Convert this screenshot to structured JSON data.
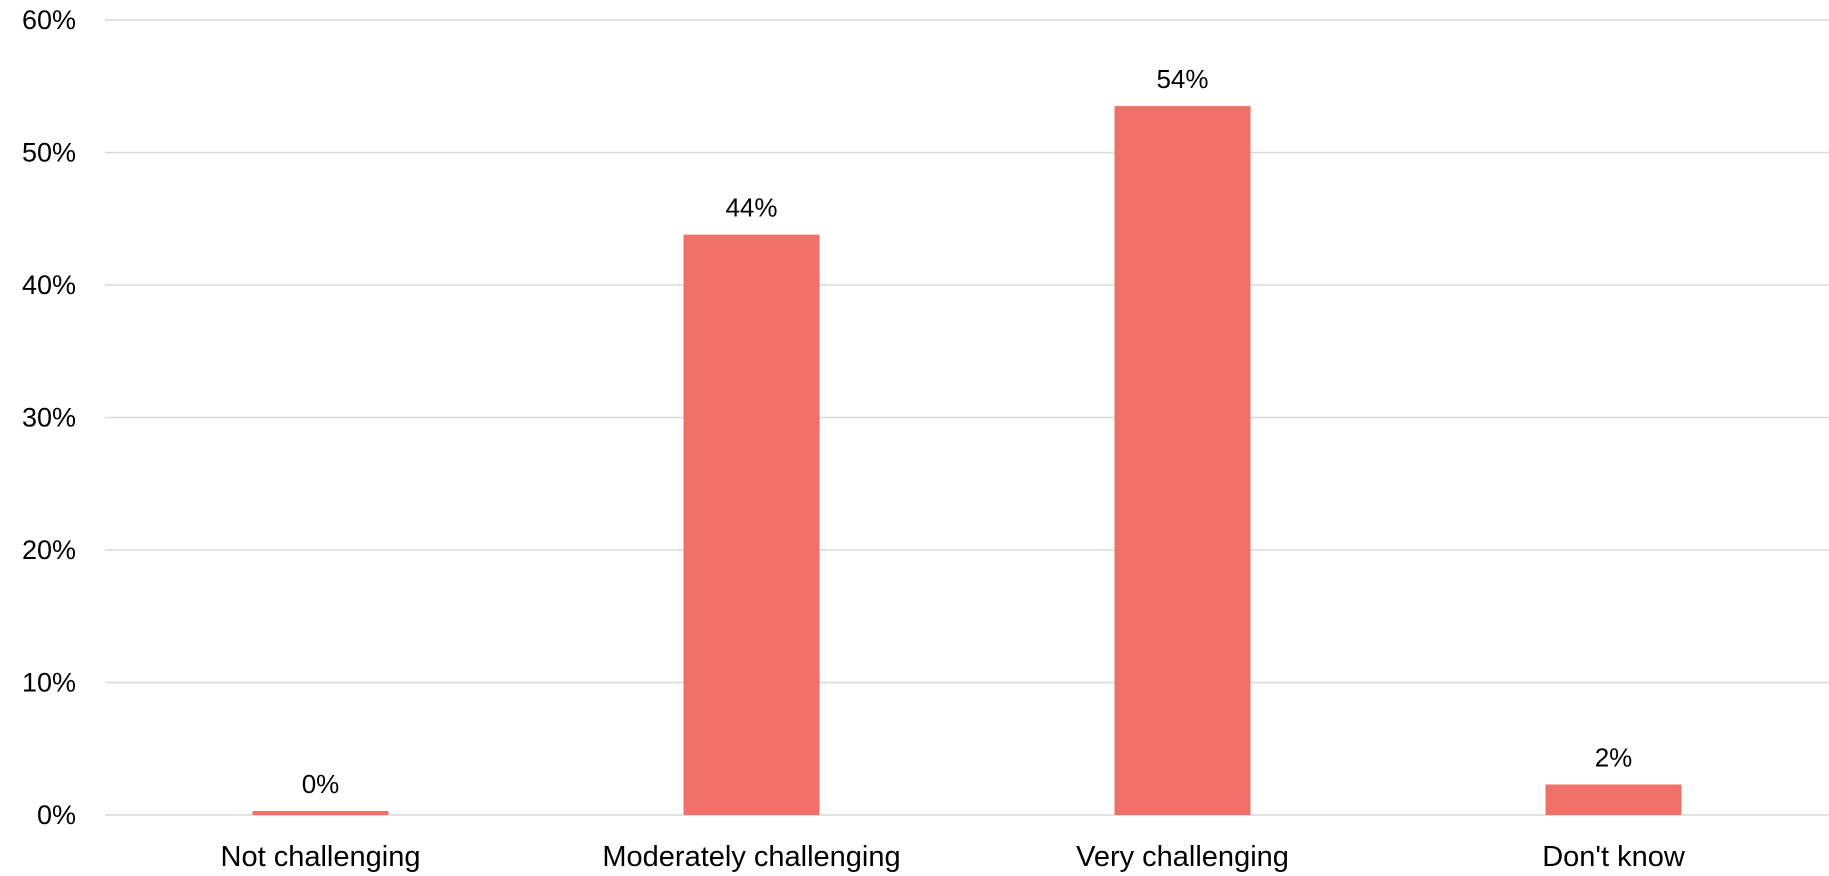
{
  "chart_data": {
    "type": "bar",
    "title": "",
    "xlabel": "",
    "ylabel": "",
    "categories": [
      "Not challenging",
      "Moderately challenging",
      "Very challenging",
      "Don't know"
    ],
    "values": [
      0.3,
      43.8,
      53.5,
      2.3
    ],
    "data_labels": [
      "0%",
      "44%",
      "54%",
      "2%"
    ],
    "ylim": [
      0,
      60
    ],
    "yticks": [
      0,
      10,
      20,
      30,
      40,
      50,
      60
    ],
    "ytick_labels": [
      "0%",
      "10%",
      "20%",
      "30%",
      "40%",
      "50%",
      "60%"
    ],
    "grid": true,
    "legend": "none",
    "colors": {
      "bar": "#ef7167",
      "grid": "#d9d9d9",
      "text": "#000000"
    }
  }
}
